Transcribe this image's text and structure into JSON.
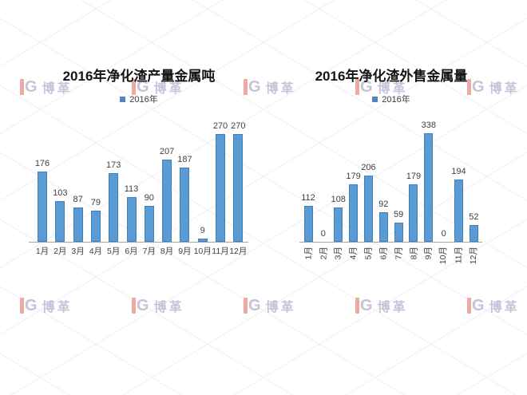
{
  "page": {
    "watermark_text": "博革",
    "watermark_mark": "G"
  },
  "colors": {
    "bar_fill": "#5b9bd5",
    "bar_border": "#4080b8",
    "legend_swatch": "#4e86c2",
    "label_text": "#3f3f3f",
    "axis_line": "#a6a6a6",
    "watermark_pink": "#efa9a2",
    "watermark_lavender": "#c7c2d9"
  },
  "chart_data": [
    {
      "type": "bar",
      "title": "2016年净化渣产量金属吨",
      "legend": [
        "2016年"
      ],
      "legend_position": "top",
      "categories": [
        "1月",
        "2月",
        "3月",
        "4月",
        "5月",
        "6月",
        "7月",
        "8月",
        "9月",
        "10月",
        "11月",
        "12月"
      ],
      "values": [
        176,
        103,
        87,
        79,
        173,
        113,
        90,
        207,
        187,
        9,
        270,
        270
      ],
      "xlabel": "",
      "ylabel": "",
      "ylim": [
        0,
        270
      ],
      "grid": false,
      "data_labels": true,
      "x_tick_rotation": 0
    },
    {
      "type": "bar",
      "title": "2016年净化渣外售金属量",
      "legend": [
        "2016年"
      ],
      "legend_position": "top",
      "categories": [
        "1月",
        "2月",
        "3月",
        "4月",
        "5月",
        "6月",
        "7月",
        "8月",
        "9月",
        "10月",
        "11月",
        "12月"
      ],
      "values": [
        112,
        0,
        108,
        179,
        206,
        92,
        59,
        179,
        338,
        0,
        194,
        52
      ],
      "xlabel": "",
      "ylabel": "",
      "ylim": [
        0,
        338
      ],
      "grid": false,
      "data_labels": true,
      "x_tick_rotation": -90
    }
  ]
}
